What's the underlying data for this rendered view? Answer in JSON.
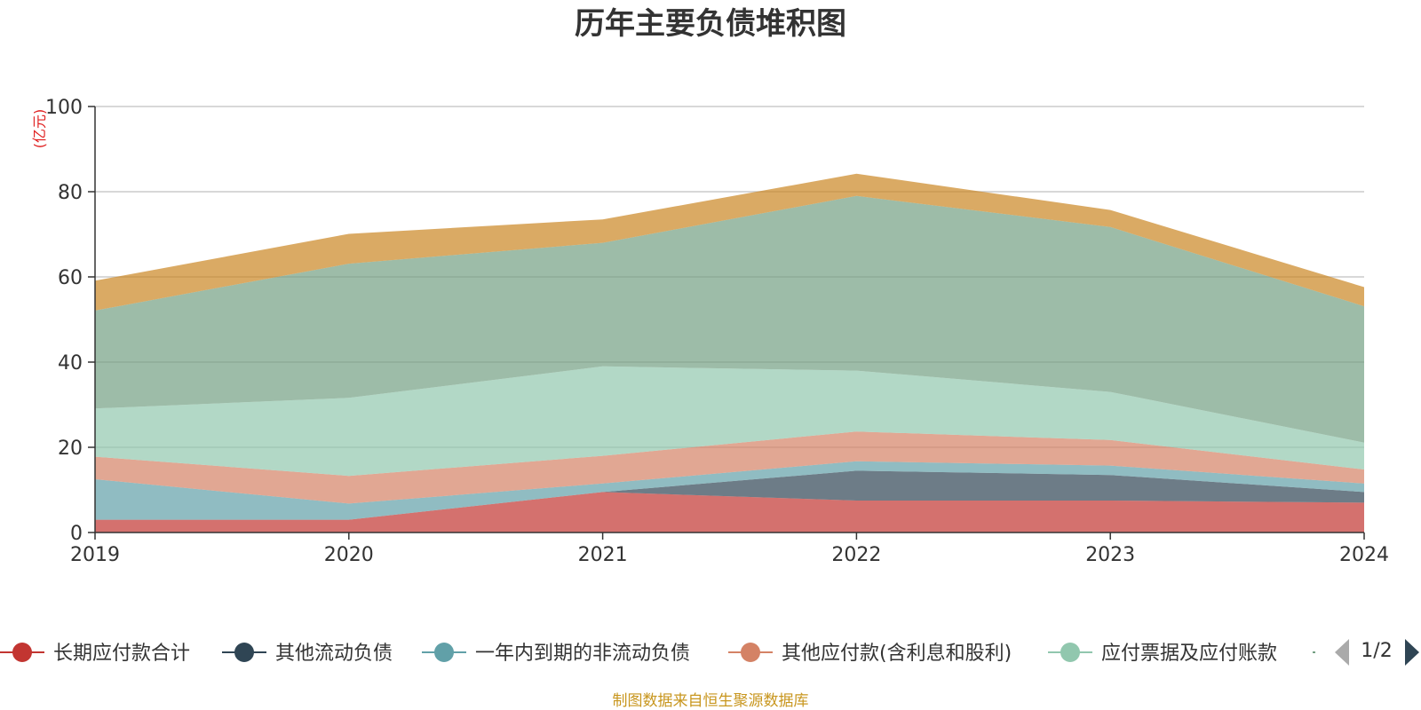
{
  "chart_data": {
    "type": "area",
    "stacked": true,
    "title": "历年主要负债堆积图",
    "y_unit": "(亿元)",
    "x": [
      "2019",
      "2020",
      "2021",
      "2022",
      "2023",
      "2024"
    ],
    "ylim": [
      0,
      100
    ],
    "y_ticks": [
      "0",
      "20",
      "40",
      "60",
      "80",
      "100"
    ],
    "grid": true,
    "series": [
      {
        "name": "长期应付款合计",
        "color": "#c23531",
        "values": [
          3.0,
          3.0,
          9.5,
          7.5,
          7.5,
          7.0
        ]
      },
      {
        "name": "其他流动负债",
        "color": "#2f4554",
        "values": [
          0.0,
          0.0,
          0.0,
          7.0,
          6.0,
          2.5
        ]
      },
      {
        "name": "一年内到期的非流动负债",
        "color": "#61a0a8",
        "values": [
          9.5,
          3.8,
          2.0,
          2.2,
          2.2,
          2.0
        ]
      },
      {
        "name": "其他应付款(含利息和股利)",
        "color": "#d48265",
        "values": [
          5.3,
          6.5,
          6.5,
          7.0,
          6.0,
          3.3
        ]
      },
      {
        "name": "应付票据及应付账款",
        "color": "#91c7ae",
        "values": [
          11.3,
          18.3,
          21.0,
          14.3,
          11.3,
          6.3
        ]
      },
      {
        "name": "",
        "color": "#749f83",
        "values": [
          23.0,
          31.5,
          29.0,
          41.0,
          38.7,
          32.0
        ]
      },
      {
        "name": "",
        "color": "#ca8622",
        "values": [
          7.0,
          7.0,
          5.5,
          5.2,
          4.0,
          4.5
        ]
      }
    ],
    "legend_position": "bottom"
  },
  "legend": {
    "page_indicator": "1/2",
    "prev_icon": "triangle-left-icon",
    "next_icon": "triangle-right-icon"
  },
  "footer": {
    "source": "制图数据来自恒生聚源数据库"
  }
}
